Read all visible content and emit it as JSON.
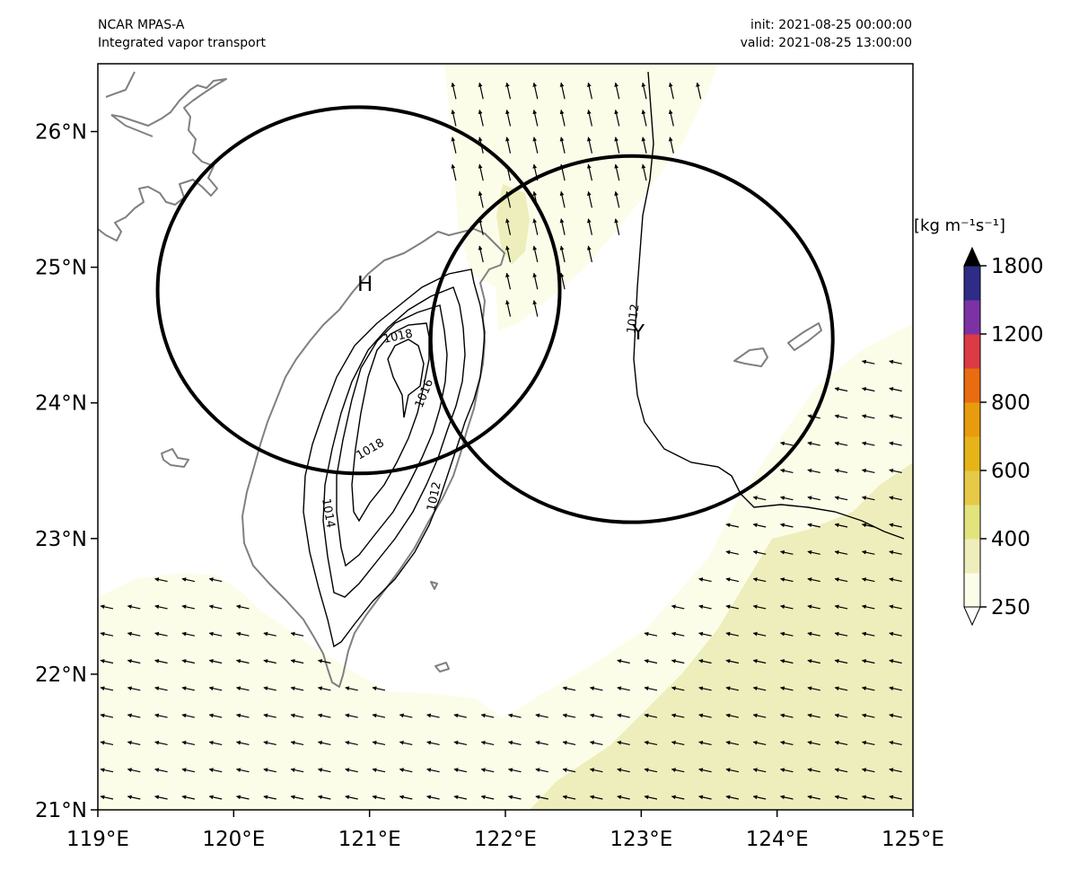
{
  "header": {
    "model": "NCAR MPAS-A",
    "field": "Integrated vapor transport",
    "init": "init: 2021-08-25 00:00:00",
    "valid": "valid: 2021-08-25 13:00:00"
  },
  "map": {
    "lon_range": [
      119,
      125
    ],
    "lat_range": [
      21,
      26.5
    ],
    "lon_ticks": [
      "119°E",
      "120°E",
      "121°E",
      "122°E",
      "123°E",
      "124°E",
      "125°E"
    ],
    "lat_ticks": [
      "21°N",
      "22°N",
      "23°N",
      "24°N",
      "25°N",
      "26°N"
    ],
    "coastline_color": "#808080"
  },
  "colorbar": {
    "units": "[kg m$^{-1}$s$^{-1}$]",
    "units_display": "[kg m⁻¹s⁻¹]",
    "tick_labels": [
      "250",
      "400",
      "600",
      "800",
      "1200",
      "1800"
    ],
    "colors": [
      "#fcfde9",
      "#eeeebc",
      "#e3e37d",
      "#e6c947",
      "#e6b418",
      "#e99b0e",
      "#ea6c11",
      "#dc3a45",
      "#7c32a3",
      "#2e2c85"
    ],
    "extend_low_color": "#ffffff",
    "extend_high_color": "#000000"
  },
  "centers": {
    "high_label": "H",
    "other_label": "Y"
  },
  "contours": {
    "labels": [
      "1018",
      "1016",
      "1018",
      "1014",
      "1012",
      "1012"
    ]
  },
  "circles": [
    {
      "lon_center": 120.92,
      "lat_center": 24.83,
      "name": "circle-north-taiwan"
    },
    {
      "lon_center": 122.93,
      "lat_center": 24.47,
      "name": "circle-east-taiwan"
    }
  ]
}
